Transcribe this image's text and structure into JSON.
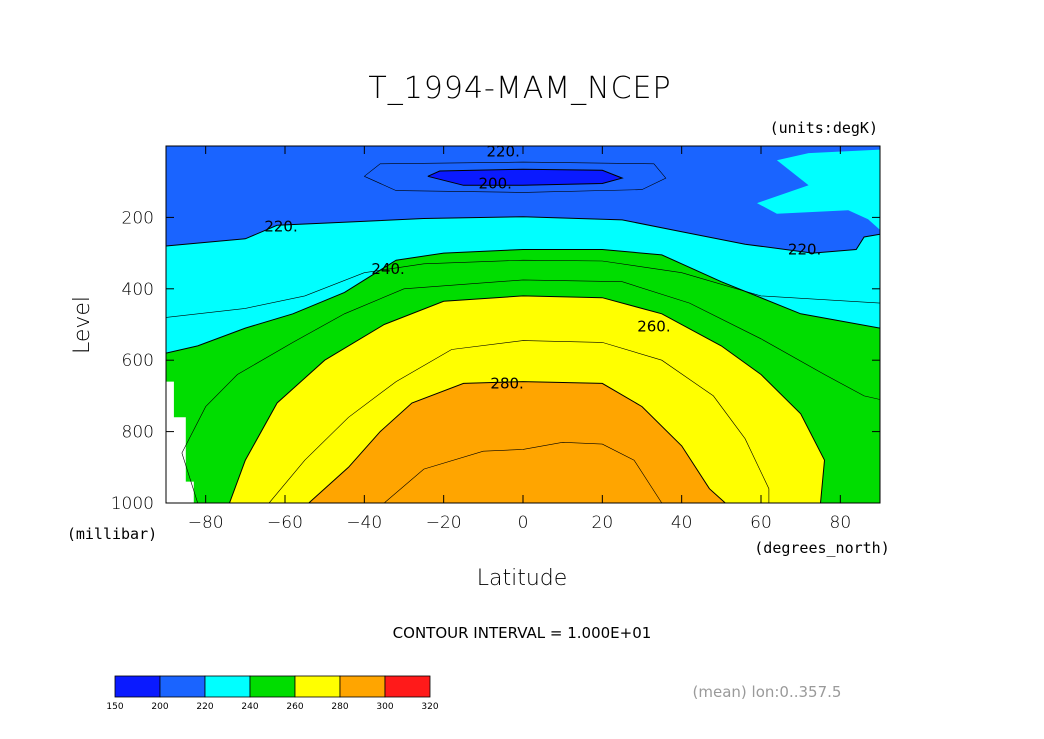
{
  "chart_data": {
    "type": "contour",
    "title": "T_1994-MAM_NCEP",
    "units_label": "(units:degK)",
    "xlabel": "Latitude",
    "x_units": "(degrees_north)",
    "ylabel": "Level",
    "y_units": "(millibar)",
    "xlim": [
      -90,
      90
    ],
    "ylim": [
      1000,
      0
    ],
    "x_ticks": [
      -80,
      -60,
      -40,
      -20,
      0,
      20,
      40,
      60,
      80
    ],
    "x_tick_labels": [
      "−80",
      "−60",
      "−40",
      "−20",
      "0",
      "20",
      "40",
      "60",
      "80"
    ],
    "y_ticks": [
      200,
      400,
      600,
      800,
      1000
    ],
    "y_tick_labels": [
      "200",
      "400",
      "600",
      "800",
      "1000"
    ],
    "contour_interval_text": "CONTOUR INTERVAL = 1.000E+01",
    "mean_note": "(mean) lon:0..357.5",
    "colorbar": {
      "levels": [
        150,
        200,
        220,
        240,
        260,
        280,
        300,
        320
      ],
      "labels": [
        "150",
        "200",
        "220",
        "240",
        "260",
        "280",
        "300",
        "320"
      ],
      "colors": [
        "#0a1aff",
        "#1a64ff",
        "#00ffff",
        "#00dd00",
        "#ffff00",
        "#ffa500",
        "#ff1a1a"
      ]
    },
    "contour_labels": [
      {
        "text": "220.",
        "lat": -5,
        "p": 15
      },
      {
        "text": "200.",
        "lat": -7,
        "p": 105
      },
      {
        "text": "220.",
        "lat": -61,
        "p": 225
      },
      {
        "text": "220.",
        "lat": 71,
        "p": 290
      },
      {
        "text": "240.",
        "lat": -34,
        "p": 345
      },
      {
        "text": "260.",
        "lat": 33,
        "p": 505
      },
      {
        "text": "280.",
        "lat": -4,
        "p": 665
      }
    ],
    "filled_regions": [
      {
        "level": 200,
        "color": "#1a64ff",
        "boundary": [
          [
            -90,
            0
          ],
          [
            90,
            0
          ],
          [
            90,
            10
          ],
          [
            72,
            20
          ],
          [
            64,
            40
          ],
          [
            72,
            110
          ],
          [
            59,
            160
          ],
          [
            64,
            190
          ],
          [
            82,
            180
          ],
          [
            87,
            205
          ],
          [
            90,
            235
          ],
          [
            90,
            247
          ],
          [
            86,
            255
          ],
          [
            84,
            290
          ],
          [
            73,
            300
          ],
          [
            56,
            275
          ],
          [
            40,
            240
          ],
          [
            25,
            207
          ],
          [
            0,
            198
          ],
          [
            -25,
            203
          ],
          [
            -50,
            216
          ],
          [
            -62,
            222
          ],
          [
            -70,
            260
          ],
          [
            -90,
            280
          ]
        ]
      },
      {
        "level": 210,
        "color": "#0a1aff",
        "boundary": [
          [
            -24,
            85
          ],
          [
            -21,
            70
          ],
          [
            0,
            65
          ],
          [
            20,
            68
          ],
          [
            25,
            90
          ],
          [
            20,
            105
          ],
          [
            0,
            110
          ],
          [
            -15,
            110
          ]
        ]
      },
      {
        "level": 240,
        "color": "#00dd00",
        "boundary": [
          [
            -90,
            580
          ],
          [
            -82,
            560
          ],
          [
            -70,
            510
          ],
          [
            -58,
            470
          ],
          [
            -45,
            410
          ],
          [
            -32,
            320
          ],
          [
            -20,
            300
          ],
          [
            0,
            290
          ],
          [
            20,
            290
          ],
          [
            35,
            305
          ],
          [
            50,
            380
          ],
          [
            70,
            470
          ],
          [
            90,
            510
          ],
          [
            90,
            1000
          ],
          [
            -90,
            1000
          ]
        ]
      },
      {
        "level": 260,
        "color": "#ffff00",
        "boundary": [
          [
            -74,
            1000
          ],
          [
            -70,
            880
          ],
          [
            -62,
            720
          ],
          [
            -50,
            600
          ],
          [
            -35,
            500
          ],
          [
            -20,
            435
          ],
          [
            0,
            420
          ],
          [
            20,
            425
          ],
          [
            35,
            470
          ],
          [
            50,
            560
          ],
          [
            60,
            640
          ],
          [
            70,
            750
          ],
          [
            76,
            880
          ],
          [
            75,
            1000
          ]
        ]
      },
      {
        "level": 280,
        "color": "#ffa500",
        "boundary": [
          [
            -54,
            1000
          ],
          [
            -44,
            900
          ],
          [
            -36,
            800
          ],
          [
            -28,
            720
          ],
          [
            -15,
            665
          ],
          [
            0,
            660
          ],
          [
            20,
            665
          ],
          [
            30,
            730
          ],
          [
            40,
            840
          ],
          [
            47,
            960
          ],
          [
            51,
            1000
          ]
        ]
      },
      {
        "level": 210,
        "color": "#ffffff",
        "boundary": [
          [
            -90,
            660
          ],
          [
            -88,
            660
          ],
          [
            -88,
            760
          ],
          [
            -85,
            760
          ],
          [
            -85,
            940
          ],
          [
            -83,
            940
          ],
          [
            -83,
            1000
          ],
          [
            -90,
            1000
          ]
        ]
      }
    ],
    "contour_lines": [
      [
        [
          -24,
          85
        ],
        [
          -21,
          70
        ],
        [
          0,
          65
        ],
        [
          20,
          68
        ],
        [
          25,
          90
        ],
        [
          20,
          105
        ],
        [
          0,
          110
        ],
        [
          -15,
          110
        ],
        [
          -24,
          85
        ]
      ],
      [
        [
          -40,
          85
        ],
        [
          -36,
          50
        ],
        [
          0,
          45
        ],
        [
          33,
          50
        ],
        [
          36,
          90
        ],
        [
          30,
          122
        ],
        [
          0,
          130
        ],
        [
          -32,
          125
        ],
        [
          -40,
          85
        ]
      ],
      [
        [
          -90,
          280
        ],
        [
          -70,
          260
        ],
        [
          -62,
          222
        ],
        [
          -50,
          216
        ],
        [
          -25,
          203
        ],
        [
          0,
          198
        ],
        [
          25,
          207
        ],
        [
          40,
          240
        ],
        [
          56,
          275
        ],
        [
          73,
          300
        ],
        [
          84,
          290
        ],
        [
          86,
          255
        ],
        [
          90,
          247
        ]
      ],
      [
        [
          -90,
          480
        ],
        [
          -70,
          455
        ],
        [
          -55,
          420
        ],
        [
          -40,
          355
        ],
        [
          -25,
          330
        ],
        [
          0,
          320
        ],
        [
          20,
          322
        ],
        [
          40,
          355
        ],
        [
          60,
          420
        ],
        [
          90,
          440
        ]
      ],
      [
        [
          -90,
          580
        ],
        [
          -82,
          560
        ],
        [
          -70,
          510
        ],
        [
          -58,
          470
        ],
        [
          -45,
          410
        ],
        [
          -32,
          320
        ],
        [
          -20,
          300
        ],
        [
          0,
          290
        ],
        [
          20,
          290
        ],
        [
          35,
          305
        ],
        [
          50,
          380
        ],
        [
          70,
          470
        ],
        [
          90,
          510
        ]
      ],
      [
        [
          -82,
          1000
        ],
        [
          -86,
          860
        ],
        [
          -80,
          730
        ],
        [
          -72,
          640
        ],
        [
          -58,
          550
        ],
        [
          -45,
          470
        ],
        [
          -30,
          400
        ],
        [
          0,
          375
        ],
        [
          25,
          380
        ],
        [
          42,
          440
        ],
        [
          60,
          540
        ],
        [
          76,
          640
        ],
        [
          86,
          700
        ],
        [
          90,
          710
        ]
      ],
      [
        [
          -74,
          1000
        ],
        [
          -70,
          880
        ],
        [
          -62,
          720
        ],
        [
          -50,
          600
        ],
        [
          -35,
          500
        ],
        [
          -20,
          435
        ],
        [
          0,
          420
        ],
        [
          20,
          425
        ],
        [
          35,
          470
        ],
        [
          50,
          560
        ],
        [
          60,
          640
        ],
        [
          70,
          750
        ],
        [
          76,
          880
        ],
        [
          75,
          1000
        ]
      ],
      [
        [
          -64,
          1000
        ],
        [
          -55,
          880
        ],
        [
          -44,
          760
        ],
        [
          -32,
          660
        ],
        [
          -18,
          570
        ],
        [
          0,
          545
        ],
        [
          20,
          550
        ],
        [
          35,
          600
        ],
        [
          48,
          700
        ],
        [
          56,
          820
        ],
        [
          62,
          960
        ],
        [
          62,
          1000
        ]
      ],
      [
        [
          -54,
          1000
        ],
        [
          -44,
          900
        ],
        [
          -36,
          800
        ],
        [
          -28,
          720
        ],
        [
          -15,
          665
        ],
        [
          0,
          660
        ],
        [
          20,
          665
        ],
        [
          30,
          730
        ],
        [
          40,
          840
        ],
        [
          47,
          960
        ],
        [
          51,
          1000
        ]
      ],
      [
        [
          -35,
          1000
        ],
        [
          -25,
          905
        ],
        [
          -10,
          855
        ],
        [
          0,
          850
        ],
        [
          10,
          830
        ],
        [
          20,
          835
        ],
        [
          28,
          880
        ],
        [
          35,
          1000
        ]
      ]
    ]
  }
}
